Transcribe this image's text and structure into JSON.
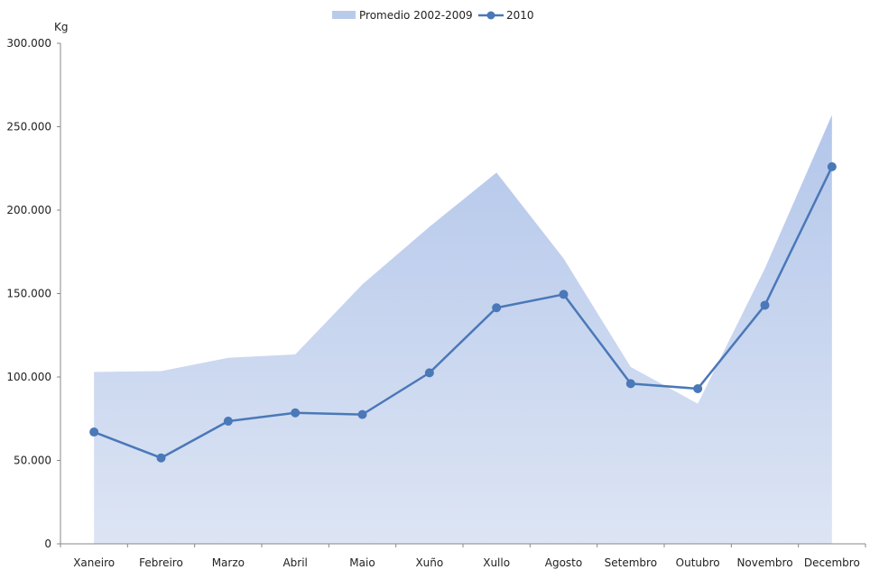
{
  "chart_data": {
    "type": "line",
    "title": "",
    "xlabel": "",
    "ylabel": "Kg",
    "ylim": [
      0,
      300000
    ],
    "yticks": [
      "0",
      "50.000",
      "100.000",
      "150.000",
      "200.000",
      "250.000",
      "300.000"
    ],
    "categories": [
      "Xaneiro",
      "Febreiro",
      "Marzo",
      "Abril",
      "Maio",
      "Xuño",
      "Xullo",
      "Agosto",
      "Setembro",
      "Outubro",
      "Novembro",
      "Decembro"
    ],
    "grid": false,
    "legend_position": "top-center",
    "series": [
      {
        "name": "Promedio 2002-2009",
        "render": "area",
        "color": "#b9cbeb",
        "values": [
          103000,
          103500,
          111500,
          113500,
          155500,
          190000,
          222500,
          171000,
          106000,
          84000,
          165000,
          257000
        ]
      },
      {
        "name": "2010",
        "render": "line",
        "color": "#4a78b8",
        "values": [
          67000,
          51500,
          73500,
          78500,
          77500,
          102500,
          141500,
          149500,
          96000,
          93000,
          143000,
          226000
        ]
      }
    ]
  }
}
